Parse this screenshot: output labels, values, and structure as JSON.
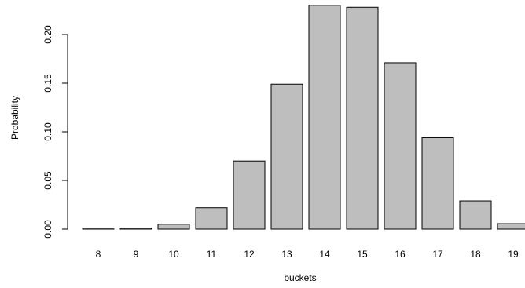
{
  "chart_data": {
    "type": "bar",
    "x_label": "buckets",
    "y_label": "Probability",
    "categories": [
      "8",
      "9",
      "10",
      "11",
      "12",
      "13",
      "14",
      "15",
      "16",
      "17",
      "18",
      "19"
    ],
    "values": [
      0.0002,
      0.001,
      0.005,
      0.022,
      0.07,
      0.149,
      0.23,
      0.228,
      0.171,
      0.094,
      0.029,
      0.0056
    ],
    "color": "#bebebe",
    "ylim": [
      0,
      0.23
    ],
    "yticks": [
      {
        "value": 0,
        "label": "0.00"
      },
      {
        "value": 0.05,
        "label": "0.05"
      },
      {
        "value": 0.1,
        "label": "0.10"
      },
      {
        "value": 0.15,
        "label": "0.15"
      },
      {
        "value": 0.2,
        "label": "0.20"
      }
    ],
    "grid": false
  }
}
